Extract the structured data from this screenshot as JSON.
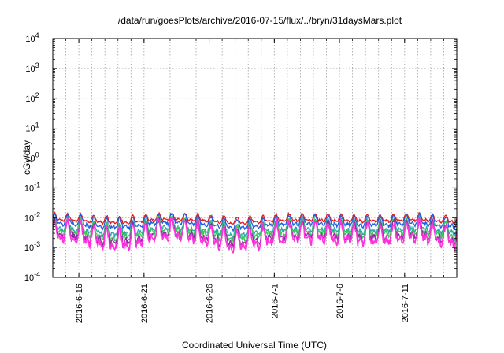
{
  "chart_data": {
    "type": "line",
    "title": "/data/run/goesPlots/archive/2016-07-15/flux/../bryn/31daysMars.plot",
    "xlabel": "Coordinated Universal Time (UTC)",
    "ylabel": "cGy/day",
    "yscale": "log",
    "ylim": [
      0.0001,
      10000
    ],
    "y_ticks": [
      {
        "base": "10",
        "exp": "4"
      },
      {
        "base": "10",
        "exp": "3"
      },
      {
        "base": "10",
        "exp": "2"
      },
      {
        "base": "10",
        "exp": "1"
      },
      {
        "base": "10",
        "exp": "0"
      },
      {
        "base": "10",
        "exp": "-1"
      },
      {
        "base": "10",
        "exp": "-2"
      },
      {
        "base": "10",
        "exp": "-3"
      },
      {
        "base": "10",
        "exp": "-4"
      }
    ],
    "xlim": [
      "2016-06-14",
      "2016-07-15"
    ],
    "x_ticks": [
      "2016-6-16",
      "2016-6-21",
      "2016-6-26",
      "2016-7-1",
      "2016-7-6",
      "2016-7-11"
    ],
    "grid": true,
    "series": [
      {
        "color": "#e41a1c",
        "base_value": 0.0085
      },
      {
        "color": "#1f5fe0",
        "base_value": 0.0065
      },
      {
        "color": "#2aa8a8",
        "base_value": 0.0042
      },
      {
        "color": "#3cc85a",
        "base_value": 0.0034
      },
      {
        "color": "#8b2fa0",
        "base_value": 0.0026
      },
      {
        "color": "#ff33dd",
        "base_value": 0.0021
      }
    ]
  }
}
